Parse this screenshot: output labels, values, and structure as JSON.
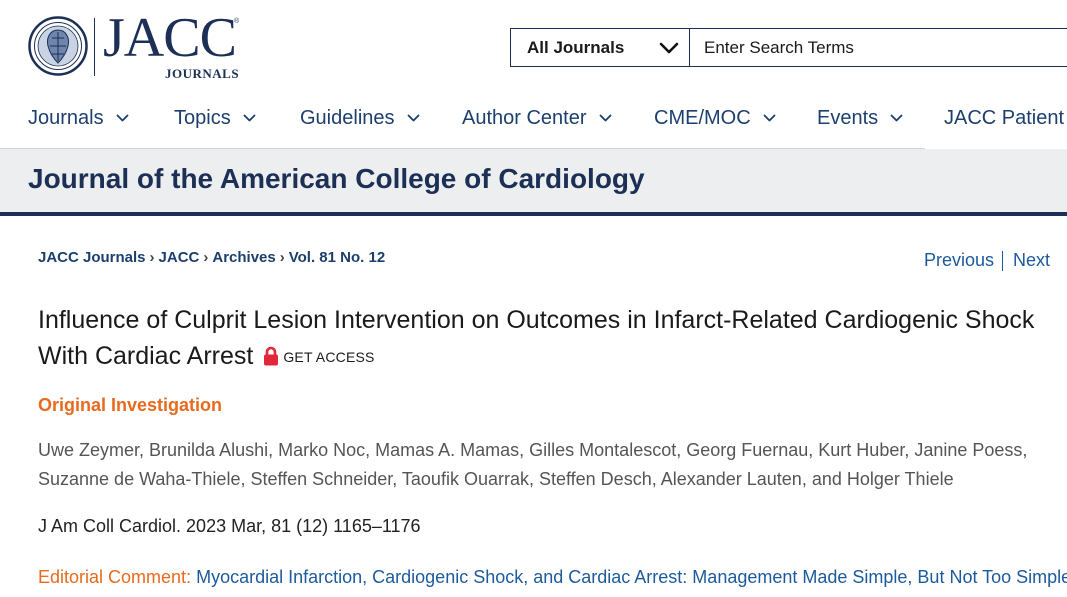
{
  "header": {
    "logo_text": "JACC",
    "logo_subtext": "JOURNALS",
    "logo_tm": "®"
  },
  "search": {
    "scope_label": "All Journals",
    "placeholder": "Enter Search Terms",
    "value": ""
  },
  "nav": {
    "items": [
      {
        "label": "Journals",
        "has_dropdown": true
      },
      {
        "label": "Topics",
        "has_dropdown": true
      },
      {
        "label": "Guidelines",
        "has_dropdown": true
      },
      {
        "label": "Author Center",
        "has_dropdown": true
      },
      {
        "label": "CME/MOC",
        "has_dropdown": true
      },
      {
        "label": "Events",
        "has_dropdown": true
      },
      {
        "label": "JACC Patient",
        "has_dropdown": false
      }
    ]
  },
  "banner": {
    "title": "Journal of the American College of Cardiology"
  },
  "breadcrumb": {
    "items": [
      "JACC Journals",
      "JACC",
      "Archives",
      "Vol. 81 No. 12"
    ],
    "separator": "›"
  },
  "pager": {
    "previous": "Previous",
    "next": "Next"
  },
  "article": {
    "title": "Influence of Culprit Lesion Intervention on Outcomes in Infarct-Related Cardiogenic Shock With Cardiac Arrest",
    "access_label": "GET ACCESS",
    "type": "Original Investigation",
    "authors": "Uwe Zeymer, Brunilda Alushi, Marko Noc, Mamas A. Mamas, Gilles Montalescot, Georg Fuernau, Kurt Huber, Janine Poess, Suzanne de Waha-Thiele, Steffen Schneider, Taoufik Ouarrak, Steffen Desch, Alexander Lauten, and Holger Thiele",
    "citation": "J Am Coll Cardiol. 2023 Mar, 81 (12) 1165–1176",
    "editorial_label": "Editorial Comment:",
    "editorial_link": "Myocardial Infarction, Cardiogenic Shock, and Cardiac Arrest: Management Made Simple, But Not Too Simple*"
  },
  "colors": {
    "navy": "#1c2f55",
    "link_blue": "#1c5a9c",
    "accent_orange": "#e86a1e",
    "lock_red": "#e0283a",
    "banner_bg": "#eceeef"
  },
  "icons": {
    "seal": "acc-seal-icon",
    "dropdown": "chevron-down-icon",
    "lock": "lock-icon"
  }
}
